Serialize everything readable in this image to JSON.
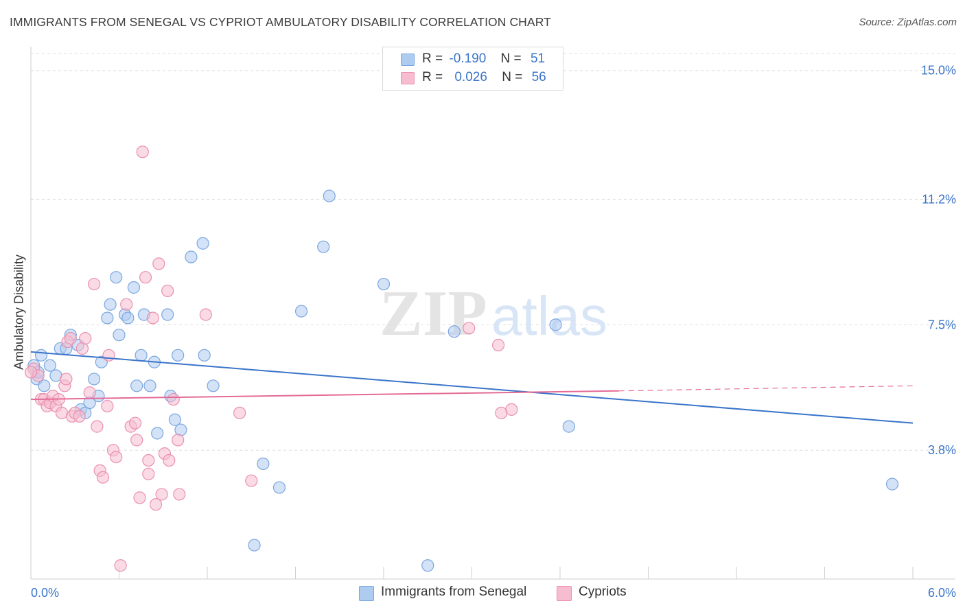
{
  "title": "IMMIGRANTS FROM SENEGAL VS CYPRIOT AMBULATORY DISABILITY CORRELATION CHART",
  "source": "Source: ZipAtlas.com",
  "watermark": {
    "zip": "ZIP",
    "atlas": "atlas"
  },
  "legend_top": [
    {
      "r_label": "R =",
      "r_value": "-0.190",
      "n_label": "N =",
      "n_value": "51"
    },
    {
      "r_label": "R =",
      "r_value": "0.026",
      "n_label": "N =",
      "n_value": "56"
    }
  ],
  "colors": {
    "blue_fill": "#aecbf0",
    "blue_stroke": "#7aa7df",
    "blue_line": "#3a74c9",
    "pink_fill": "#f6bdd0",
    "pink_stroke": "#ea8fb0",
    "pink_line": "#e46a97",
    "axis_text": "#3a74c9",
    "grid": "#dddddd"
  },
  "chart_data": {
    "type": "scatter",
    "title": "IMMIGRANTS FROM SENEGAL VS CYPRIOT AMBULATORY DISABILITY CORRELATION CHART",
    "xlabel": "",
    "ylabel": "Ambulatory Disability",
    "xlim": [
      0,
      6.0
    ],
    "ylim": [
      0,
      15.5
    ],
    "x_tick_labels": {
      "left": "0.0%",
      "right": "6.0%"
    },
    "y_ticks": [
      {
        "value": 3.8,
        "label": "3.8%"
      },
      {
        "value": 7.5,
        "label": "7.5%"
      },
      {
        "value": 11.2,
        "label": "11.2%"
      },
      {
        "value": 15.0,
        "label": "15.0%"
      }
    ],
    "series": [
      {
        "name": "Immigrants from Senegal",
        "color_key": "blue",
        "r": -0.19,
        "n": 51,
        "trend": {
          "x0": 0.0,
          "y0": 6.7,
          "x1": 6.0,
          "y1": 4.6
        },
        "points": [
          [
            0.02,
            6.3
          ],
          [
            0.04,
            5.9
          ],
          [
            0.07,
            6.6
          ],
          [
            0.09,
            5.7
          ],
          [
            0.13,
            6.3
          ],
          [
            0.17,
            6.0
          ],
          [
            0.2,
            6.8
          ],
          [
            0.24,
            6.8
          ],
          [
            0.27,
            7.2
          ],
          [
            0.32,
            6.9
          ],
          [
            0.34,
            5.0
          ],
          [
            0.37,
            4.9
          ],
          [
            0.4,
            5.2
          ],
          [
            0.43,
            5.9
          ],
          [
            0.46,
            5.4
          ],
          [
            0.48,
            6.4
          ],
          [
            0.52,
            7.7
          ],
          [
            0.54,
            8.1
          ],
          [
            0.58,
            8.9
          ],
          [
            0.6,
            7.2
          ],
          [
            0.64,
            7.8
          ],
          [
            0.66,
            7.7
          ],
          [
            0.7,
            8.6
          ],
          [
            0.72,
            5.7
          ],
          [
            0.75,
            6.6
          ],
          [
            0.77,
            7.8
          ],
          [
            0.81,
            5.7
          ],
          [
            0.84,
            6.4
          ],
          [
            0.86,
            4.3
          ],
          [
            0.93,
            7.8
          ],
          [
            0.95,
            5.4
          ],
          [
            0.98,
            4.7
          ],
          [
            1.0,
            6.6
          ],
          [
            1.02,
            4.4
          ],
          [
            1.09,
            9.5
          ],
          [
            1.17,
            9.9
          ],
          [
            1.18,
            6.6
          ],
          [
            1.24,
            5.7
          ],
          [
            1.52,
            1.0
          ],
          [
            1.58,
            3.4
          ],
          [
            1.69,
            2.7
          ],
          [
            1.84,
            7.9
          ],
          [
            1.99,
            9.8
          ],
          [
            2.03,
            11.3
          ],
          [
            2.4,
            8.7
          ],
          [
            2.7,
            0.4
          ],
          [
            2.88,
            7.3
          ],
          [
            3.57,
            7.5
          ],
          [
            3.66,
            4.5
          ],
          [
            5.86,
            2.8
          ],
          [
            0.05,
            6.1
          ]
        ]
      },
      {
        "name": "Cypriots",
        "color_key": "pink",
        "r": 0.026,
        "n": 56,
        "trend": {
          "x0": 0.0,
          "y0": 5.3,
          "x1": 4.0,
          "y1": 5.55,
          "dash_x1": 6.0,
          "dash_y1": 5.7
        },
        "points": [
          [
            0.02,
            6.2
          ],
          [
            0.05,
            6.0
          ],
          [
            0.07,
            5.3
          ],
          [
            0.09,
            5.3
          ],
          [
            0.11,
            5.1
          ],
          [
            0.13,
            5.2
          ],
          [
            0.15,
            5.4
          ],
          [
            0.17,
            5.1
          ],
          [
            0.19,
            5.3
          ],
          [
            0.21,
            4.9
          ],
          [
            0.23,
            5.7
          ],
          [
            0.24,
            5.9
          ],
          [
            0.25,
            7.0
          ],
          [
            0.27,
            7.1
          ],
          [
            0.28,
            4.8
          ],
          [
            0.3,
            4.9
          ],
          [
            0.33,
            4.8
          ],
          [
            0.35,
            6.8
          ],
          [
            0.37,
            7.1
          ],
          [
            0.4,
            5.5
          ],
          [
            0.43,
            8.7
          ],
          [
            0.45,
            4.5
          ],
          [
            0.47,
            3.2
          ],
          [
            0.49,
            3.0
          ],
          [
            0.52,
            5.1
          ],
          [
            0.53,
            6.6
          ],
          [
            0.56,
            3.8
          ],
          [
            0.58,
            3.6
          ],
          [
            0.61,
            0.4
          ],
          [
            0.65,
            8.1
          ],
          [
            0.68,
            4.5
          ],
          [
            0.71,
            4.6
          ],
          [
            0.72,
            4.1
          ],
          [
            0.74,
            2.4
          ],
          [
            0.76,
            12.6
          ],
          [
            0.78,
            8.9
          ],
          [
            0.8,
            3.5
          ],
          [
            0.8,
            3.1
          ],
          [
            0.83,
            7.7
          ],
          [
            0.85,
            2.2
          ],
          [
            0.87,
            9.3
          ],
          [
            0.89,
            2.5
          ],
          [
            0.91,
            3.7
          ],
          [
            0.93,
            8.5
          ],
          [
            0.94,
            3.5
          ],
          [
            0.97,
            5.3
          ],
          [
            1.0,
            4.1
          ],
          [
            1.01,
            2.5
          ],
          [
            1.19,
            7.8
          ],
          [
            1.42,
            4.9
          ],
          [
            1.5,
            2.9
          ],
          [
            2.98,
            7.4
          ],
          [
            3.18,
            6.9
          ],
          [
            3.2,
            4.9
          ],
          [
            3.27,
            5.0
          ],
          [
            0.0,
            6.1
          ]
        ]
      }
    ]
  }
}
